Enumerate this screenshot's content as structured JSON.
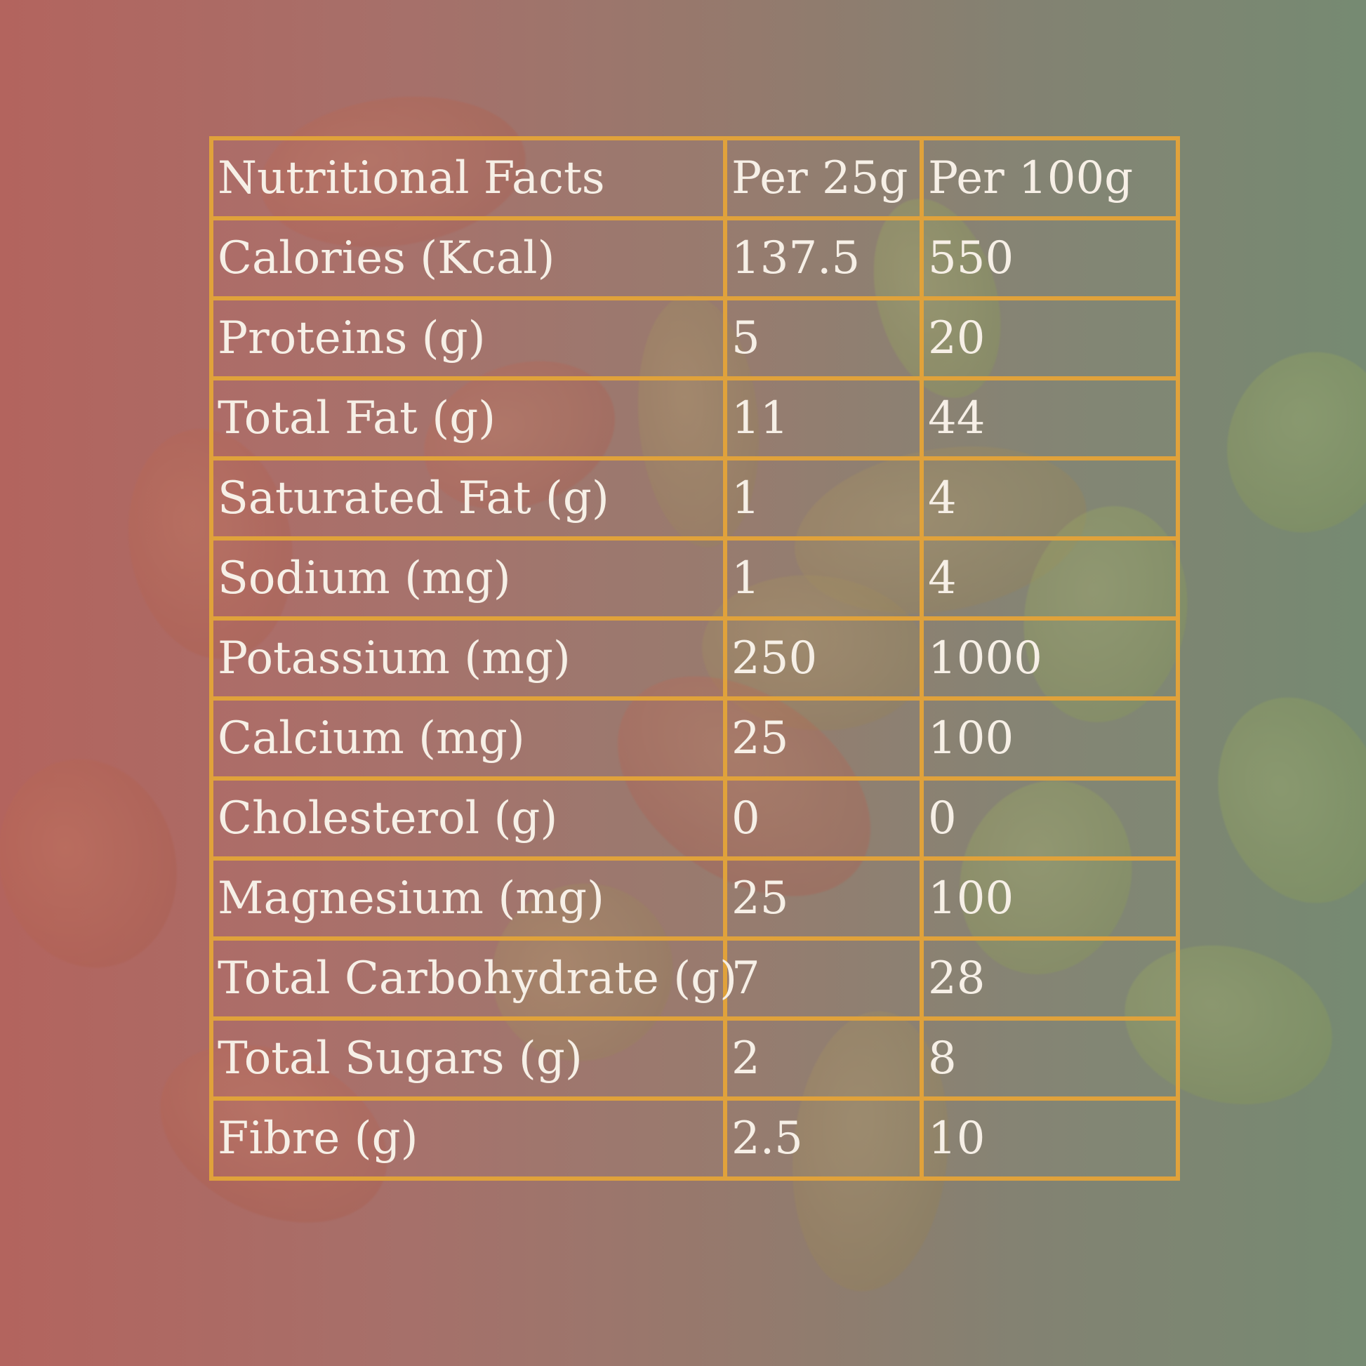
{
  "header": {
    "title": "Nutritional Facts",
    "col_per_25g": "Per 25g",
    "col_per_100g": "Per 100g"
  },
  "rows": [
    {
      "nutrient": "Calories (Kcal)",
      "per_25g": "137.5",
      "per_100g": "550"
    },
    {
      "nutrient": "Proteins (g)",
      "per_25g": "5",
      "per_100g": "20"
    },
    {
      "nutrient": "Total Fat (g)",
      "per_25g": "11",
      "per_100g": "44"
    },
    {
      "nutrient": "Saturated Fat (g)",
      "per_25g": "1",
      "per_100g": "4"
    },
    {
      "nutrient": "Sodium (mg)",
      "per_25g": "1",
      "per_100g": "4"
    },
    {
      "nutrient": "Potassium (mg)",
      "per_25g": "250",
      "per_100g": "1000"
    },
    {
      "nutrient": "Calcium (mg)",
      "per_25g": "25",
      "per_100g": "100"
    },
    {
      "nutrient": "Cholesterol (g)",
      "per_25g": "0",
      "per_100g": "0"
    },
    {
      "nutrient": "Magnesium (mg)",
      "per_25g": "25",
      "per_100g": "100"
    },
    {
      "nutrient": "Total Carbohydrate (g)",
      "per_25g": "7",
      "per_100g": "28"
    },
    {
      "nutrient": "Total Sugars (g)",
      "per_25g": "2",
      "per_100g": "8"
    },
    {
      "nutrient": "Fibre (g)",
      "per_25g": "2.5",
      "per_100g": "10"
    }
  ],
  "colors": {
    "grid_line": "#e0a23b",
    "text": "#f6efe6",
    "background_left": "#b3645e",
    "background_right": "#768a72"
  }
}
